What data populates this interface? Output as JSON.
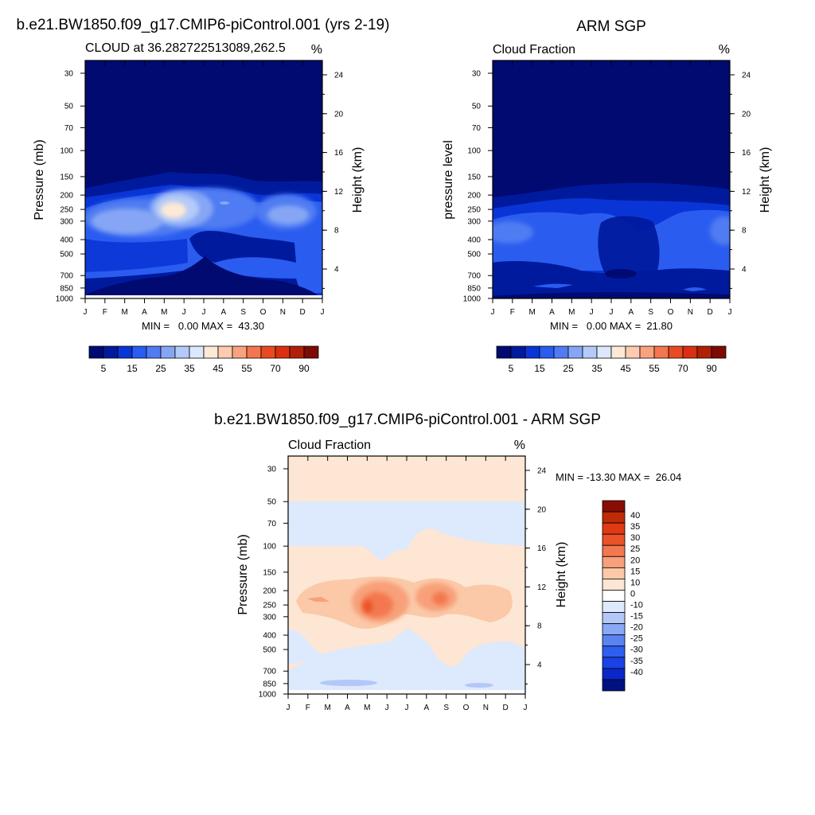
{
  "chart_data": [
    {
      "type": "heatmap",
      "id": "model",
      "suptitle": "b.e21.BW1850.f09_g17.CMIP6-piControl.001 (yrs 2-19)",
      "title": "CLOUD at 36.282722513089,262.5",
      "units": "%",
      "ylabel": "Pressure (mb)",
      "ylabel_right": "Height (km)",
      "xticks": [
        "J",
        "F",
        "M",
        "A",
        "M",
        "J",
        "J",
        "A",
        "S",
        "O",
        "N",
        "D",
        "J"
      ],
      "pressure_ticks": [
        "30",
        "50",
        "70",
        "100",
        "150",
        "200",
        "250",
        "300",
        "400",
        "500",
        "700",
        "850",
        "1000"
      ],
      "height_ticks": [
        "24",
        "20",
        "16",
        "12",
        "8",
        "4"
      ],
      "stats": "MIN =   0.00 MAX =  43.30",
      "min": 0.0,
      "max": 43.3,
      "colorbar_ticks": [
        "5",
        "15",
        "25",
        "35",
        "45",
        "55",
        "70",
        "90"
      ],
      "colorbar_levels": [
        5,
        10,
        15,
        20,
        25,
        30,
        35,
        40,
        45,
        50,
        55,
        60,
        70,
        80,
        90
      ]
    },
    {
      "type": "heatmap",
      "id": "obs",
      "suptitle": "ARM SGP",
      "title": "Cloud Fraction",
      "units": "%",
      "ylabel": "pressure level",
      "ylabel_right": "Height (km)",
      "xticks": [
        "J",
        "F",
        "M",
        "A",
        "M",
        "J",
        "J",
        "A",
        "S",
        "O",
        "N",
        "D",
        "J"
      ],
      "pressure_ticks": [
        "30",
        "50",
        "70",
        "100",
        "150",
        "200",
        "250",
        "300",
        "400",
        "500",
        "700",
        "850",
        "1000"
      ],
      "height_ticks": [
        "24",
        "20",
        "16",
        "12",
        "8",
        "4"
      ],
      "stats": "MIN =   0.00 MAX =  21.80",
      "min": 0.0,
      "max": 21.8,
      "colorbar_ticks": [
        "5",
        "15",
        "25",
        "35",
        "45",
        "55",
        "70",
        "90"
      ],
      "colorbar_levels": [
        5,
        10,
        15,
        20,
        25,
        30,
        35,
        40,
        45,
        50,
        55,
        60,
        70,
        80,
        90
      ]
    },
    {
      "type": "heatmap",
      "id": "diff",
      "suptitle": "b.e21.BW1850.f09_g17.CMIP6-piControl.001 - ARM SGP",
      "title": "Cloud Fraction",
      "units": "%",
      "ylabel": "Pressure (mb)",
      "ylabel_right": "Height (km)",
      "xticks": [
        "J",
        "F",
        "M",
        "A",
        "M",
        "J",
        "J",
        "A",
        "S",
        "O",
        "N",
        "D",
        "J"
      ],
      "pressure_ticks": [
        "30",
        "50",
        "70",
        "100",
        "150",
        "200",
        "250",
        "300",
        "400",
        "500",
        "700",
        "850",
        "1000"
      ],
      "height_ticks": [
        "24",
        "20",
        "16",
        "12",
        "8",
        "4"
      ],
      "stats": "MIN = -13.30 MAX =  26.04",
      "min": -13.3,
      "max": 26.04,
      "colorbar_ticks": [
        "40",
        "35",
        "30",
        "25",
        "20",
        "15",
        "10",
        "0",
        "-10",
        "-15",
        "-20",
        "-25",
        "-30",
        "-35",
        "-40"
      ],
      "colorbar_levels": [
        -40,
        -35,
        -30,
        -25,
        -20,
        -15,
        -10,
        0,
        10,
        15,
        20,
        25,
        30,
        35,
        40
      ]
    }
  ],
  "colors": {
    "seq": [
      "#000a70",
      "#001a9e",
      "#0a35d6",
      "#2a5cf0",
      "#4f7cf2",
      "#86a6f5",
      "#b4caf8",
      "#dbe8fc",
      "#fde9d6",
      "#fccbb0",
      "#f8a37e",
      "#f2764f",
      "#ea4a22",
      "#d83010",
      "#b02008",
      "#7e0a04"
    ],
    "div": [
      "#00127f",
      "#0a27c9",
      "#1a42e6",
      "#2e5fef",
      "#5a84f3",
      "#8aa8f6",
      "#b3c8f9",
      "#dde9fd",
      "#ffffff",
      "#fde6d3",
      "#fbc9a8",
      "#f8a07a",
      "#f3784f",
      "#ec5228",
      "#e03a12",
      "#bf2a08",
      "#8a0d03"
    ]
  }
}
